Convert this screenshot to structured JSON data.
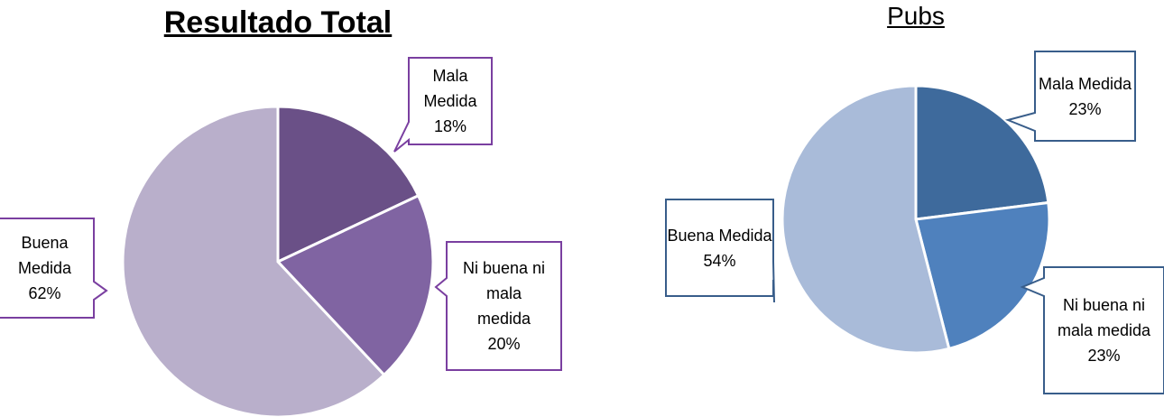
{
  "chart_data": [
    {
      "type": "pie",
      "title": "Resultado Total",
      "categories": [
        "Mala Medida",
        "Ni buena ni mala medida",
        "Buena Medida"
      ],
      "values": [
        18,
        20,
        62
      ],
      "value_labels": [
        "18%",
        "20%",
        "62%"
      ],
      "colors": [
        "#6a5087",
        "#8064a2",
        "#b9afcb"
      ],
      "label_border": "#7a3fa0"
    },
    {
      "type": "pie",
      "title": "Pubs",
      "categories": [
        "Mala Medida",
        "Ni buena ni mala medida",
        "Buena Medida"
      ],
      "values": [
        23,
        23,
        54
      ],
      "value_labels": [
        "23%",
        "23%",
        "54%"
      ],
      "colors": [
        "#3e6a9c",
        "#4f81bd",
        "#a9bbd9"
      ],
      "label_border": "#385d8a"
    }
  ]
}
